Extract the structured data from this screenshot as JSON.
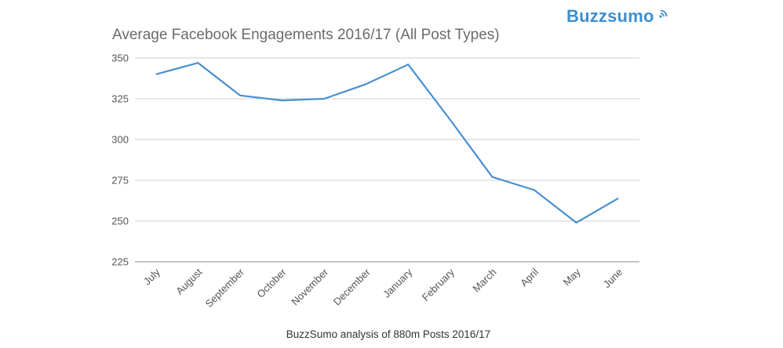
{
  "logo": {
    "text": "Buzzsumo",
    "icon": "wifi-signal-icon",
    "color": "#3d8fcf"
  },
  "chart_data": {
    "type": "line",
    "title": "Average Facebook Engagements 2016/17 (All Post Types)",
    "xlabel": "BuzzSumo analysis of 880m Posts 2016/17",
    "ylabel": "",
    "categories": [
      "July",
      "August",
      "September",
      "October",
      "November",
      "December",
      "January",
      "February",
      "March",
      "April",
      "May",
      "June"
    ],
    "series": [
      {
        "values": [
          340,
          347,
          327,
          324,
          325,
          334,
          346,
          312,
          277,
          269,
          249,
          264
        ],
        "color": "#4a8fd0"
      }
    ],
    "ylim": [
      225,
      350
    ],
    "yticks": [
      225,
      250,
      275,
      300,
      325,
      350
    ],
    "grid": true,
    "legend": "none"
  }
}
